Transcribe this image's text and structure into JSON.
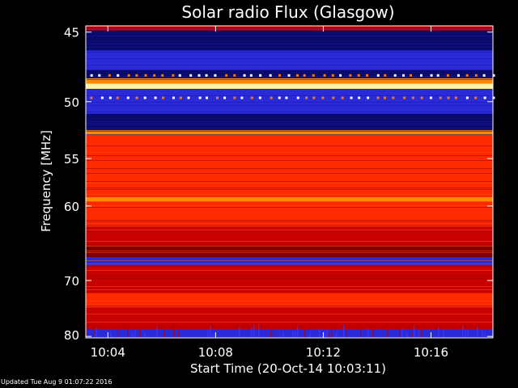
{
  "chart_data": {
    "type": "heatmap",
    "title": "Solar radio Flux (Glasgow)",
    "xlabel": "Start Time (20-Oct-14 10:03:11)",
    "ylabel": "Frequency [MHz]",
    "y_ticks": [
      45,
      50,
      55,
      60,
      70,
      80
    ],
    "x_ticks": [
      "10:04",
      "10:08",
      "10:12",
      "10:16"
    ],
    "x_tick_minutes": [
      4,
      8,
      12,
      16
    ],
    "xlim_minutes": [
      3.18,
      18.3
    ],
    "ylim_mhz": [
      44.6,
      80.3
    ],
    "y_scale": "reciprocal",
    "colormap": [
      "#0a0a6a",
      "#2a2ad8",
      "#7a0000",
      "#c80000",
      "#ff2a00",
      "#ff8a00",
      "#fff2a0"
    ],
    "bands": [
      {
        "from_mhz": 44.6,
        "to_mhz": 44.9,
        "level": 3
      },
      {
        "from_mhz": 44.9,
        "to_mhz": 46.2,
        "level": 0
      },
      {
        "from_mhz": 46.2,
        "to_mhz": 47.6,
        "level": 1
      },
      {
        "from_mhz": 47.6,
        "to_mhz": 48.2,
        "level": 0
      },
      {
        "from_mhz": 48.2,
        "to_mhz": 48.6,
        "level": 5
      },
      {
        "from_mhz": 48.6,
        "to_mhz": 49.0,
        "level": 6
      },
      {
        "from_mhz": 49.0,
        "to_mhz": 51.0,
        "level": 1
      },
      {
        "from_mhz": 51.0,
        "to_mhz": 52.4,
        "level": 0
      },
      {
        "from_mhz": 52.4,
        "to_mhz": 52.8,
        "level": 5
      },
      {
        "from_mhz": 52.8,
        "to_mhz": 59.0,
        "level": 4
      },
      {
        "from_mhz": 59.0,
        "to_mhz": 59.5,
        "level": 5
      },
      {
        "from_mhz": 59.5,
        "to_mhz": 62.5,
        "level": 4
      },
      {
        "from_mhz": 62.5,
        "to_mhz": 65.0,
        "level": 3
      },
      {
        "from_mhz": 65.0,
        "to_mhz": 66.5,
        "level": 2
      },
      {
        "from_mhz": 66.5,
        "to_mhz": 67.8,
        "level": 1
      },
      {
        "from_mhz": 67.8,
        "to_mhz": 72.0,
        "level": 3
      },
      {
        "from_mhz": 72.0,
        "to_mhz": 74.5,
        "level": 4
      },
      {
        "from_mhz": 74.5,
        "to_mhz": 78.5,
        "level": 3
      },
      {
        "from_mhz": 78.5,
        "to_mhz": 80.3,
        "level": 1
      }
    ]
  },
  "footer": "Updated Tue Aug  9 01:07:22 2016"
}
